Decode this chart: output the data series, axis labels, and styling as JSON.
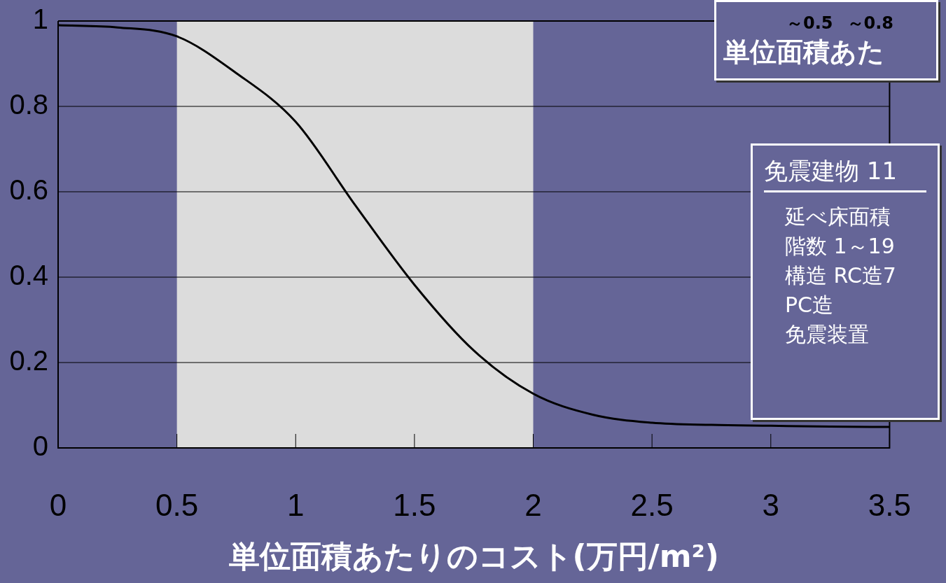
{
  "chart_data": {
    "type": "line",
    "xlabel": "単位面積あたりのコスト(万円/m²)",
    "x": [
      0,
      0.25,
      0.5,
      0.75,
      1,
      1.25,
      1.5,
      1.75,
      2,
      2.25,
      2.5,
      2.75,
      3,
      3.25,
      3.5
    ],
    "series": [
      {
        "color": "#000000",
        "values": [
          0.99,
          0.985,
          0.964,
          0.878,
          0.764,
          0.569,
          0.382,
          0.228,
          0.127,
          0.078,
          0.059,
          0.054,
          0.052,
          0.05,
          0.049
        ]
      }
    ],
    "xlim": [
      0,
      3.5
    ],
    "xticks": [
      0,
      0.5,
      1,
      1.5,
      2,
      2.5,
      3,
      3.5
    ],
    "ylim": [
      0,
      1
    ],
    "yticks": [
      0,
      0.2,
      0.4,
      0.6,
      0.8,
      1
    ],
    "grid": "y",
    "legend": false,
    "marker": "none",
    "line_style": "solid",
    "bands": [
      {
        "axis": "x",
        "from": 0.5,
        "to": 2,
        "color": "#dcdcdc"
      }
    ],
    "annotations": [
      "～0.5",
      "～0.8",
      "単位面積あた",
      "免震建物 11",
      "延べ床面積",
      "階数 1～19",
      "構造 RC造7",
      "PC造",
      "免震装置"
    ]
  }
}
